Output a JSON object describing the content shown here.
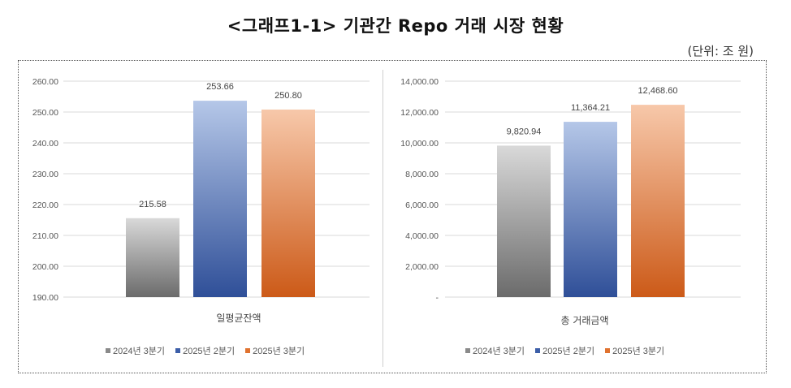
{
  "title": "<그래프1-1> 기관간 Repo 거래 시장 현황",
  "unit": "(단위: 조 원)",
  "colors": {
    "s2024q3": "#7a7a7a",
    "s2025q2": "#3c5ea8",
    "s2025q3": "#d9692a"
  },
  "chart_data": [
    {
      "type": "bar",
      "categories": [
        "일평균잔액"
      ],
      "series": [
        {
          "name": "2024년 3분기",
          "values": [
            215.58
          ]
        },
        {
          "name": "2025년 2분기",
          "values": [
            253.66
          ]
        },
        {
          "name": "2025년 3분기",
          "values": [
            250.8
          ]
        }
      ],
      "data_labels": [
        "215.58",
        "253.66",
        "250.80"
      ],
      "ylim": [
        190,
        260
      ],
      "yticks": [
        "190.00",
        "200.00",
        "210.00",
        "220.00",
        "230.00",
        "240.00",
        "250.00",
        "260.00"
      ],
      "xlabel": "일평균잔액",
      "legend": "bottom"
    },
    {
      "type": "bar",
      "categories": [
        "총 거래금액"
      ],
      "series": [
        {
          "name": "2024년 3분기",
          "values": [
            9820.94
          ]
        },
        {
          "name": "2025년 2분기",
          "values": [
            11364.21
          ]
        },
        {
          "name": "2025년 3분기",
          "values": [
            12468.6
          ]
        }
      ],
      "data_labels": [
        "9,820.94",
        "11,364.21",
        "12,468.60"
      ],
      "ylim": [
        0,
        14000
      ],
      "yticks": [
        "-",
        "2,000.00",
        "4,000.00",
        "6,000.00",
        "8,000.00",
        "10,000.00",
        "12,000.00",
        "14,000.00"
      ],
      "xlabel": "총 거래금액",
      "legend": "bottom"
    }
  ]
}
